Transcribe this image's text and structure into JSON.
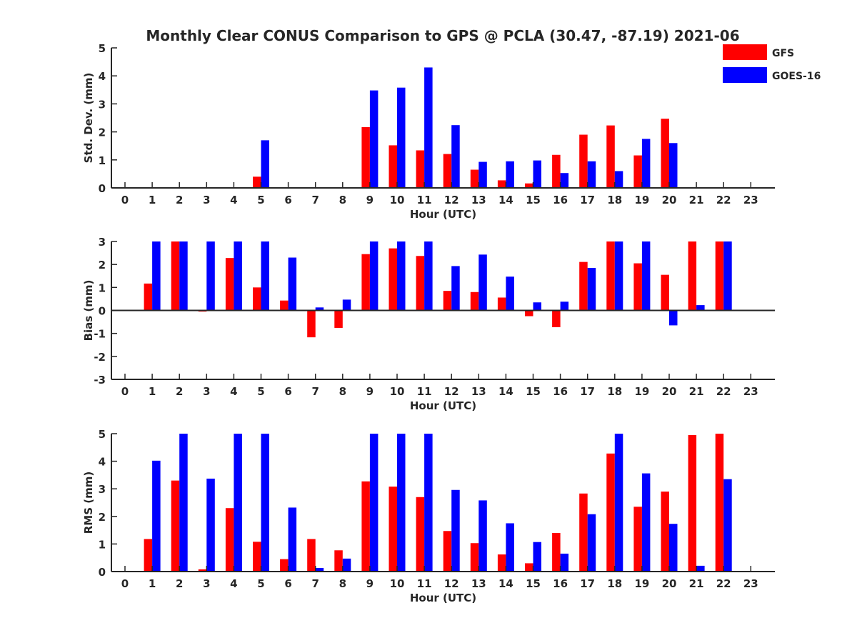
{
  "title": "Monthly Clear CONUS Comparison to GPS @ PCLA (30.47, -87.19) 2021-06",
  "legend": {
    "placement": "top-right",
    "entries": [
      {
        "label": "GFS",
        "color": "#ff0000"
      },
      {
        "label": "GOES-16",
        "color": "#0000ff"
      }
    ]
  },
  "chart_data": [
    {
      "type": "bar",
      "title": "Monthly Clear CONUS Comparison to GPS @ PCLA (30.47, -87.19) 2021-06",
      "xlabel": "Hour (UTC)",
      "ylabel": "Std. Dev. (mm)",
      "categories": [
        "0",
        "1",
        "2",
        "3",
        "4",
        "5",
        "6",
        "7",
        "8",
        "9",
        "10",
        "11",
        "12",
        "13",
        "14",
        "15",
        "16",
        "17",
        "18",
        "19",
        "20",
        "21",
        "22",
        "23"
      ],
      "ylim": [
        0,
        5
      ],
      "yticks": [
        0,
        1,
        2,
        3,
        4,
        5
      ],
      "grid": false,
      "series": [
        {
          "name": "GFS",
          "color": "#ff0000",
          "values": [
            null,
            null,
            null,
            null,
            null,
            0.4,
            null,
            null,
            null,
            2.17,
            1.52,
            1.34,
            1.21,
            0.65,
            0.27,
            0.16,
            1.18,
            1.9,
            2.23,
            1.16,
            2.47,
            null,
            null,
            null
          ]
        },
        {
          "name": "GOES-16",
          "color": "#0000ff",
          "values": [
            null,
            null,
            null,
            null,
            null,
            1.7,
            null,
            null,
            null,
            3.48,
            3.58,
            4.3,
            2.24,
            0.93,
            0.95,
            0.98,
            0.53,
            0.95,
            0.6,
            1.75,
            1.6,
            null,
            null,
            null
          ]
        }
      ]
    },
    {
      "type": "bar",
      "xlabel": "Hour (UTC)",
      "ylabel": "Bias (mm)",
      "categories": [
        "0",
        "1",
        "2",
        "3",
        "4",
        "5",
        "6",
        "7",
        "8",
        "9",
        "10",
        "11",
        "12",
        "13",
        "14",
        "15",
        "16",
        "17",
        "18",
        "19",
        "20",
        "21",
        "22",
        "23"
      ],
      "ylim": [
        -3,
        3
      ],
      "yticks": [
        -3,
        -2,
        -1,
        0,
        1,
        2,
        3
      ],
      "grid": false,
      "series": [
        {
          "name": "GFS",
          "color": "#ff0000",
          "values": [
            null,
            1.17,
            3,
            -0.05,
            2.28,
            1,
            0.43,
            -1.17,
            -0.76,
            2.45,
            2.7,
            2.37,
            0.85,
            0.8,
            0.56,
            -0.25,
            -0.73,
            2.11,
            3,
            2.05,
            1.55,
            3,
            3,
            null
          ]
        },
        {
          "name": "GOES-16",
          "color": "#0000ff",
          "values": [
            null,
            3,
            3,
            3,
            3,
            3,
            2.3,
            0.13,
            0.47,
            3,
            3,
            3,
            1.93,
            2.43,
            1.47,
            0.35,
            0.38,
            1.85,
            3,
            3,
            -0.65,
            0.23,
            3,
            null
          ]
        }
      ]
    },
    {
      "type": "bar",
      "xlabel": "Hour (UTC)",
      "ylabel": "RMS (mm)",
      "categories": [
        "0",
        "1",
        "2",
        "3",
        "4",
        "5",
        "6",
        "7",
        "8",
        "9",
        "10",
        "11",
        "12",
        "13",
        "14",
        "15",
        "16",
        "17",
        "18",
        "19",
        "20",
        "21",
        "22",
        "23"
      ],
      "ylim": [
        0,
        5
      ],
      "yticks": [
        0,
        1,
        2,
        3,
        4,
        5
      ],
      "grid": false,
      "series": [
        {
          "name": "GFS",
          "color": "#ff0000",
          "values": [
            null,
            1.18,
            3.3,
            0.08,
            2.3,
            1.08,
            0.45,
            1.18,
            0.77,
            3.27,
            3.08,
            2.7,
            1.47,
            1.03,
            0.62,
            0.3,
            1.4,
            2.83,
            4.28,
            2.35,
            2.9,
            4.95,
            5,
            null
          ]
        },
        {
          "name": "GOES-16",
          "color": "#0000ff",
          "values": [
            null,
            4.02,
            5,
            3.37,
            5,
            5,
            2.32,
            0.13,
            0.47,
            5,
            5,
            5,
            2.96,
            2.58,
            1.75,
            1.07,
            0.65,
            2.08,
            5,
            3.56,
            1.73,
            0.21,
            3.35,
            null
          ]
        }
      ]
    }
  ]
}
